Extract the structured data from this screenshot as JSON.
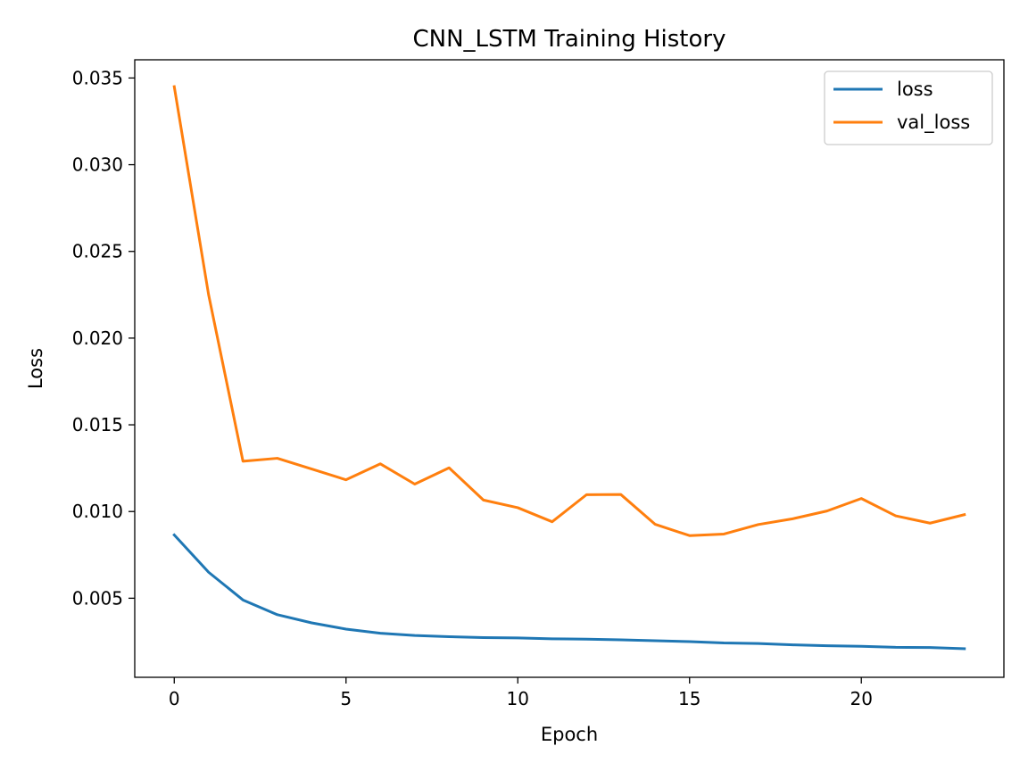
{
  "chart_data": {
    "type": "line",
    "title": "CNN_LSTM Training History",
    "xlabel": "Epoch",
    "ylabel": "Loss",
    "xlim": [
      -1.15,
      24.15
    ],
    "ylim": [
      0.00044,
      0.03605
    ],
    "xticks": [
      0,
      5,
      10,
      15,
      20
    ],
    "xtick_labels": [
      "0",
      "5",
      "10",
      "15",
      "20"
    ],
    "yticks": [
      0.005,
      0.01,
      0.015,
      0.02,
      0.025,
      0.03,
      0.035
    ],
    "ytick_labels": [
      "0.005",
      "0.010",
      "0.015",
      "0.020",
      "0.025",
      "0.030",
      "0.035"
    ],
    "grid": false,
    "legend_position": "top-right",
    "x": [
      0,
      1,
      2,
      3,
      4,
      5,
      6,
      7,
      8,
      9,
      10,
      11,
      12,
      13,
      14,
      15,
      16,
      17,
      18,
      19,
      20,
      21,
      22,
      23
    ],
    "series": [
      {
        "name": "loss",
        "color": "#1f77b4",
        "values": [
          0.00865,
          0.0065,
          0.0049,
          0.00405,
          0.00358,
          0.00322,
          0.00298,
          0.00285,
          0.00278,
          0.00273,
          0.00271,
          0.00266,
          0.00264,
          0.0026,
          0.00255,
          0.0025,
          0.00242,
          0.00239,
          0.00231,
          0.00226,
          0.00223,
          0.00217,
          0.00216,
          0.00209
        ]
      },
      {
        "name": "val_loss",
        "color": "#ff7f0e",
        "values": [
          0.0345,
          0.0225,
          0.0129,
          0.01307,
          0.01245,
          0.01183,
          0.01275,
          0.01158,
          0.01252,
          0.01066,
          0.01022,
          0.00941,
          0.01097,
          0.01098,
          0.00926,
          0.00861,
          0.0087,
          0.00925,
          0.00958,
          0.01003,
          0.01075,
          0.00975,
          0.00933,
          0.00982
        ]
      }
    ]
  }
}
